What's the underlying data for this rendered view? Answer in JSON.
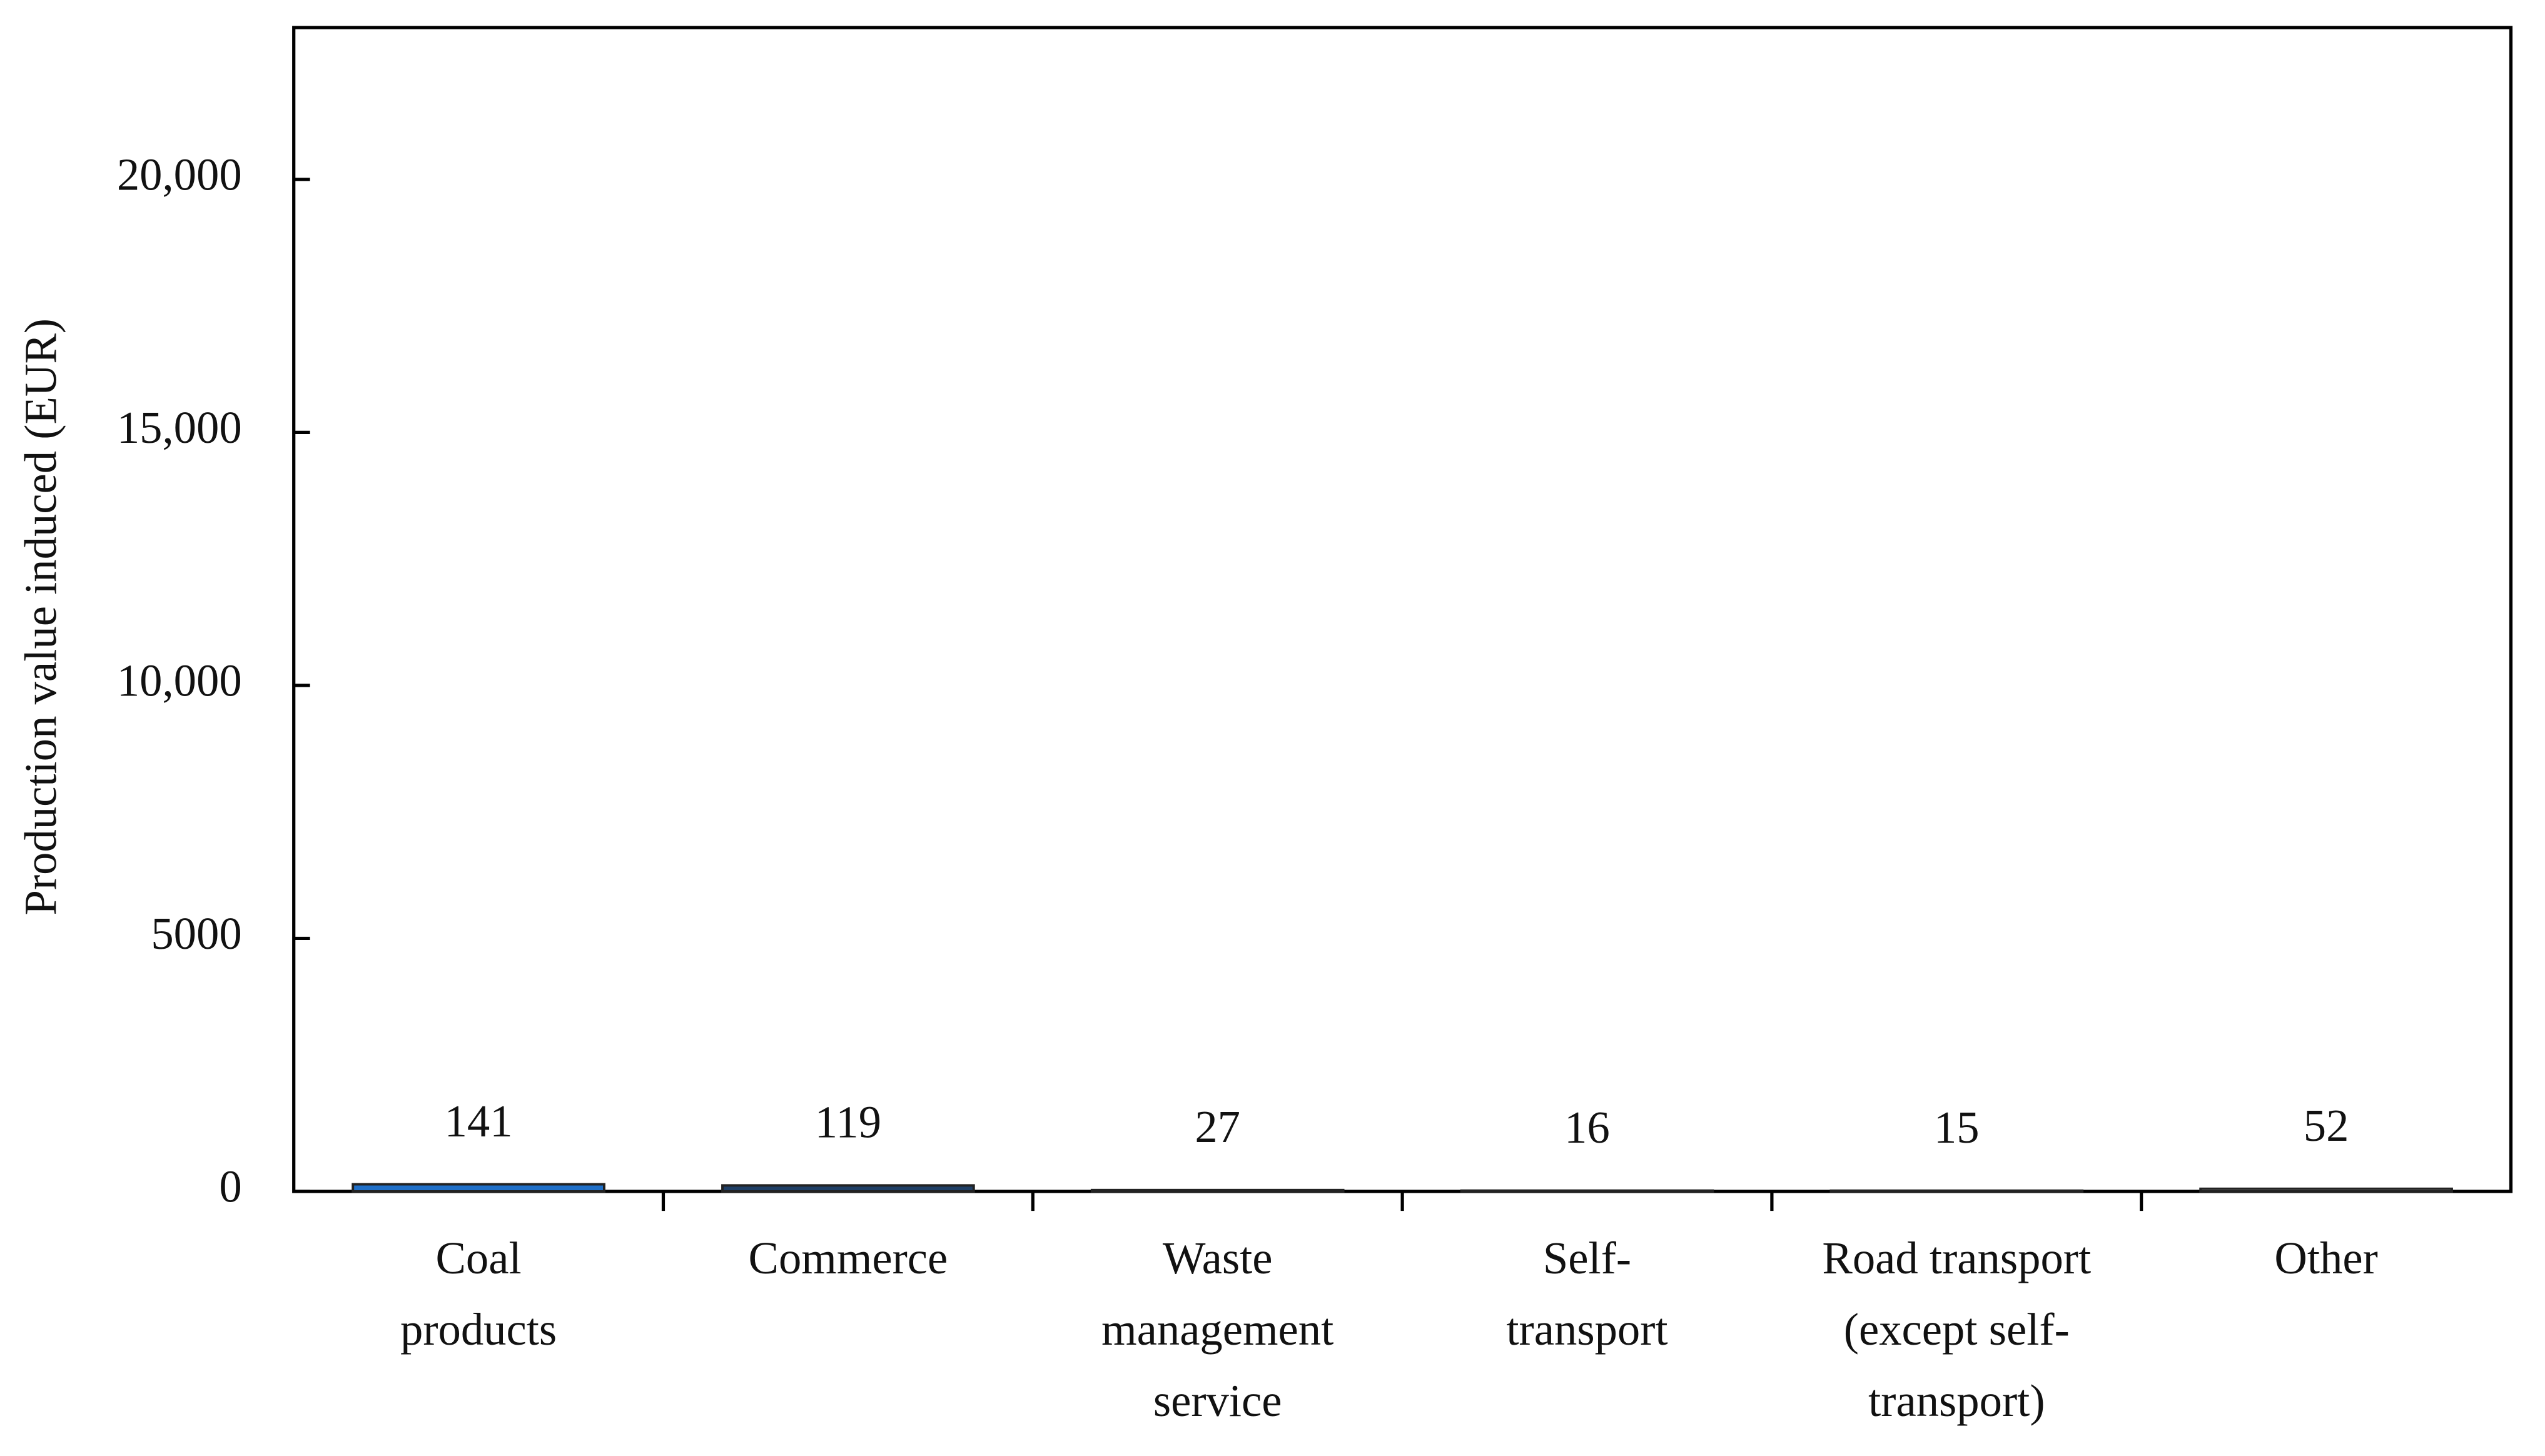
{
  "chart_data": {
    "type": "bar",
    "y_label": "Production value induced (EUR)",
    "categories": [
      [
        "Coal",
        "products"
      ],
      [
        "Commerce"
      ],
      [
        "Waste",
        "management",
        "service"
      ],
      [
        "Self-",
        "transport"
      ],
      [
        "Road transport",
        "(except self-",
        "transport)"
      ],
      [
        "Other"
      ]
    ],
    "values": [
      141,
      119,
      27,
      16,
      15,
      52
    ],
    "colors": [
      "#1f6fc8",
      "#1f3f66",
      "#2a3f5c",
      "#2a3f5c",
      "#2a3f5c",
      "#ececec"
    ],
    "ylim": [
      0,
      23000
    ],
    "yticks": [
      0,
      5000,
      {
        "value": 10000,
        "label": "10,000"
      },
      {
        "value": 15000,
        "label": "15,000"
      },
      {
        "value": 20000,
        "label": "20,000"
      }
    ]
  }
}
